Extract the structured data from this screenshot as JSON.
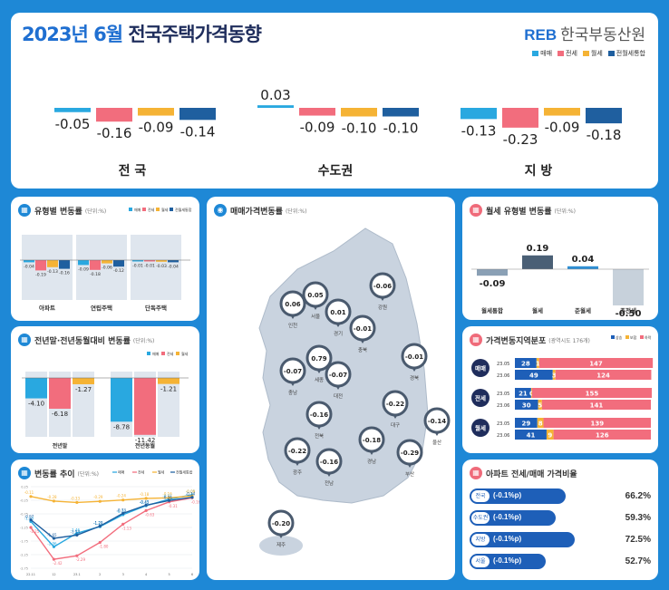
{
  "header": {
    "title_accent": "2023년 6월",
    "title_rest": "전국주택가격동향",
    "brand_logo": "REB",
    "brand_name": "한국부동산원",
    "legend": [
      "매매",
      "전세",
      "월세",
      "전월세통합"
    ]
  },
  "colors": {
    "sale": "#29a8e0",
    "jeonse": "#f26d7d",
    "wolse": "#f5b335",
    "combined": "#1f5f9f",
    "navy": "#1f2d5c"
  },
  "chart_data": [
    {
      "type": "bar",
      "title": "2023년 6월 전국주택가격동향",
      "legend": [
        "매매",
        "전세",
        "월세",
        "전월세통합"
      ],
      "categories": [
        "전 국",
        "수도권",
        "지 방"
      ],
      "series": [
        {
          "name": "매매",
          "values": [
            -0.05,
            0.03,
            -0.13
          ]
        },
        {
          "name": "전세",
          "values": [
            -0.16,
            -0.09,
            -0.23
          ]
        },
        {
          "name": "월세",
          "values": [
            -0.09,
            -0.1,
            -0.09
          ]
        },
        {
          "name": "전월세통합",
          "values": [
            -0.14,
            -0.1,
            -0.18
          ]
        }
      ]
    },
    {
      "type": "bar",
      "title": "유형별 변동률",
      "unit": "(단위:%)",
      "legend": [
        "매매",
        "전세",
        "월세",
        "전월세통합"
      ],
      "categories": [
        "아파트",
        "연립주택",
        "단독주택"
      ],
      "series": [
        {
          "name": "매매",
          "values": [
            -0.04,
            -0.09,
            -0.01
          ]
        },
        {
          "name": "전세",
          "values": [
            -0.19,
            -0.18,
            -0.01
          ]
        },
        {
          "name": "월세",
          "values": [
            -0.13,
            -0.06,
            -0.03
          ]
        },
        {
          "name": "전월세통합",
          "values": [
            -0.16,
            -0.12,
            -0.04
          ]
        }
      ]
    },
    {
      "type": "bar",
      "title": "전년말·전년동월대비 변동률",
      "unit": "(단위:%)",
      "legend": [
        "매매",
        "전세",
        "월세"
      ],
      "categories": [
        "전년말",
        "전년동월"
      ],
      "series": [
        {
          "name": "매매",
          "values": [
            -4.1,
            -8.78
          ]
        },
        {
          "name": "전세",
          "values": [
            -6.18,
            -11.42
          ]
        },
        {
          "name": "월세",
          "values": [
            -1.27,
            -1.21
          ]
        }
      ]
    },
    {
      "type": "line",
      "title": "변동률 추이",
      "unit": "(단위:%)",
      "legend": [
        "매매",
        "전세",
        "월세",
        "전월세통합"
      ],
      "categories": [
        "22.11",
        "12",
        "23.1",
        "2",
        "3",
        "4",
        "5",
        "6"
      ],
      "ylim": [
        -2.75,
        0.25
      ],
      "y_ticks": [
        "0.25",
        "-0.25",
        "-0.75",
        "-1.25",
        "-1.75",
        "-2.25",
        "-2.75"
      ],
      "series": [
        {
          "name": "매매",
          "values": [
            -1.03,
            -1.96,
            -1.46,
            -1.22,
            -0.78,
            -0.45,
            -0.21,
            -0.05
          ]
        },
        {
          "name": "전세",
          "values": [
            -1.25,
            -2.42,
            -2.29,
            -1.8,
            -1.13,
            -0.63,
            -0.31,
            -0.16
          ]
        },
        {
          "name": "월세",
          "values": [
            -0.11,
            -0.28,
            -0.33,
            -0.29,
            -0.24,
            -0.18,
            -0.16,
            -0.09
          ]
        },
        {
          "name": "전월세통합",
          "values": [
            -0.97,
            -1.65,
            -1.53,
            -1.2,
            -0.73,
            -0.43,
            -0.26,
            -0.14
          ]
        }
      ]
    },
    {
      "type": "bar",
      "title": "월세 유형별 변동률",
      "unit": "(단위:%)",
      "categories": [
        "월세통합",
        "월세",
        "준월세",
        "준전세"
      ],
      "values": [
        -0.09,
        0.19,
        0.04,
        -0.5
      ]
    },
    {
      "type": "bar",
      "title": "가격변동지역분포",
      "unit": "(광역시도 176개)",
      "legend": [
        "상승",
        "보합",
        "하락"
      ],
      "groups": [
        {
          "label": "매매",
          "rows": [
            {
              "period": "23.05",
              "values": [
                28,
                1,
                147
              ]
            },
            {
              "period": "23.06",
              "values": [
                49,
                3,
                124
              ]
            }
          ]
        },
        {
          "label": "전세",
          "rows": [
            {
              "period": "23.05",
              "values": [
                21,
                0,
                155
              ]
            },
            {
              "period": "23.06",
              "values": [
                30,
                5,
                141
              ]
            }
          ]
        },
        {
          "label": "월세",
          "rows": [
            {
              "period": "23.05",
              "values": [
                29,
                8,
                139
              ]
            },
            {
              "period": "23.06",
              "values": [
                41,
                9,
                126
              ]
            }
          ]
        }
      ]
    },
    {
      "type": "bar",
      "title": "아파트 전세/매매 가격비율",
      "categories": [
        "전국",
        "수도권",
        "지방",
        "서울"
      ],
      "values": [
        66.2,
        59.3,
        72.5,
        52.7
      ],
      "labels": [
        "66.2%",
        "59.3%",
        "72.5%",
        "52.7%"
      ],
      "change_labels": [
        "(-0.1%p)",
        "(-0.1%p)",
        "(-0.1%p)",
        "(-0.1%p)"
      ]
    },
    {
      "type": "scatter",
      "title": "매매가격변동률",
      "unit": "(단위:%)",
      "points": [
        {
          "name": "인천",
          "value": "0.06"
        },
        {
          "name": "서울",
          "value": "0.05"
        },
        {
          "name": "경기",
          "value": "0.01"
        },
        {
          "name": "강원",
          "value": "-0.06"
        },
        {
          "name": "충북",
          "value": "-0.01"
        },
        {
          "name": "세종",
          "value": "0.79"
        },
        {
          "name": "충남",
          "value": "-0.07"
        },
        {
          "name": "대전",
          "value": "-0.07"
        },
        {
          "name": "경북",
          "value": "-0.01"
        },
        {
          "name": "전북",
          "value": "-0.16"
        },
        {
          "name": "대구",
          "value": "-0.22"
        },
        {
          "name": "울산",
          "value": "-0.14"
        },
        {
          "name": "광주",
          "value": "-0.22"
        },
        {
          "name": "경남",
          "value": "-0.18"
        },
        {
          "name": "부산",
          "value": "-0.29"
        },
        {
          "name": "전남",
          "value": "-0.16"
        },
        {
          "name": "제주",
          "value": "-0.20"
        }
      ]
    }
  ],
  "labels": {
    "top_values": [
      [
        "-0.05",
        "-0.16",
        "-0.09",
        "-0.14"
      ],
      [
        "0.03",
        "-0.09",
        "-0.10",
        "-0.10"
      ],
      [
        "-0.13",
        "-0.23",
        "-0.09",
        "-0.18"
      ]
    ],
    "type_values": [
      [
        "-0.04",
        "-0.19",
        "-0.13",
        "-0.16"
      ],
      [
        "-0.09",
        "-0.18",
        "-0.06",
        "-0.12"
      ],
      [
        "-0.01",
        "-0.01",
        "-0.03",
        "-0.04"
      ]
    ],
    "yoy_values": [
      [
        "-4.10",
        "-6.18",
        "-1.27"
      ],
      [
        "-8.78",
        "-11.42",
        "-1.21"
      ]
    ],
    "wolse_values": [
      "-0.09",
      "0.19",
      "0.04",
      "-0.50"
    ],
    "icon_names": {
      "panel": "chart-icon",
      "map": "map-icon"
    }
  }
}
